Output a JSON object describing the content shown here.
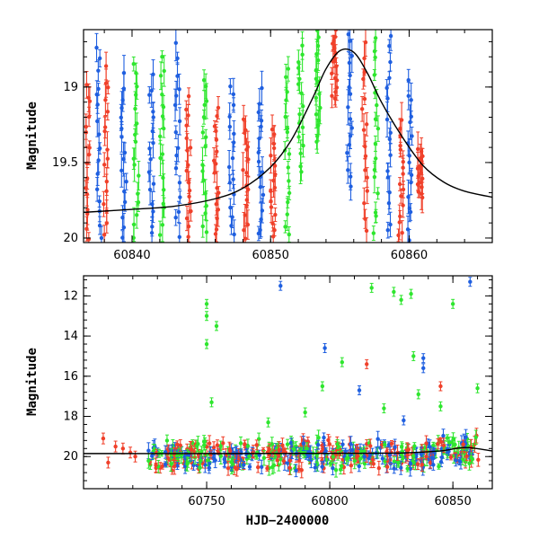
{
  "colors": {
    "green": "#2ee62e",
    "blue": "#1f5fe0",
    "red": "#f0402a"
  },
  "chart_data": [
    {
      "id": "top",
      "type": "scatter",
      "xlabel": "",
      "ylabel": "Magnitude",
      "xlim": [
        60836.5,
        60866.0
      ],
      "ylim": [
        20.03,
        18.62
      ],
      "y_inverted": true,
      "xticks": [
        60840,
        60850,
        60860
      ],
      "yticks": [
        19.0,
        19.5,
        20.0
      ],
      "ytick_labels": [
        "19",
        "19.5",
        "20"
      ],
      "grid": false,
      "legend": "none",
      "model_curve": {
        "x": [
          60836.5,
          60840,
          60843,
          60846,
          60848,
          60850,
          60851.5,
          60853,
          60854,
          60855,
          60856,
          60857,
          60858,
          60859.5,
          60861,
          60862.5,
          60864,
          60866
        ],
        "y": [
          19.83,
          19.81,
          19.79,
          19.74,
          19.67,
          19.53,
          19.35,
          19.08,
          18.88,
          18.76,
          18.77,
          18.91,
          19.1,
          19.33,
          19.52,
          19.63,
          19.69,
          19.73
        ]
      },
      "columns": [
        {
          "x": 60836.8,
          "y_top": 18.95,
          "y_bottom": 20.03,
          "series": "red"
        },
        {
          "x": 60837.6,
          "y_top": 18.7,
          "y_bottom": 20.03,
          "series": "blue"
        },
        {
          "x": 60838.1,
          "y_top": 18.85,
          "y_bottom": 20.03,
          "series": "red"
        },
        {
          "x": 60839.4,
          "y_top": 18.9,
          "y_bottom": 20.03,
          "series": "blue"
        },
        {
          "x": 60840.3,
          "y_top": 18.8,
          "y_bottom": 20.03,
          "series": "green"
        },
        {
          "x": 60841.4,
          "y_top": 18.9,
          "y_bottom": 20.03,
          "series": "blue"
        },
        {
          "x": 60842.2,
          "y_top": 18.75,
          "y_bottom": 20.03,
          "series": "green"
        },
        {
          "x": 60843.3,
          "y_top": 18.7,
          "y_bottom": 20.03,
          "series": "blue"
        },
        {
          "x": 60844.1,
          "y_top": 19.05,
          "y_bottom": 20.03,
          "series": "red"
        },
        {
          "x": 60845.2,
          "y_top": 18.9,
          "y_bottom": 20.03,
          "series": "green"
        },
        {
          "x": 60846.1,
          "y_top": 19.1,
          "y_bottom": 20.03,
          "series": "red"
        },
        {
          "x": 60847.2,
          "y_top": 18.95,
          "y_bottom": 20.03,
          "series": "blue"
        },
        {
          "x": 60848.2,
          "y_top": 19.2,
          "y_bottom": 20.03,
          "series": "red"
        },
        {
          "x": 60849.3,
          "y_top": 19.0,
          "y_bottom": 20.03,
          "series": "blue"
        },
        {
          "x": 60850.2,
          "y_top": 19.25,
          "y_bottom": 20.03,
          "series": "red"
        },
        {
          "x": 60851.2,
          "y_top": 18.85,
          "y_bottom": 20.03,
          "series": "green"
        },
        {
          "x": 60852.2,
          "y_top": 18.7,
          "y_bottom": 19.6,
          "series": "green"
        },
        {
          "x": 60853.4,
          "y_top": 18.62,
          "y_bottom": 19.4,
          "series": "green"
        },
        {
          "x": 60854.6,
          "y_top": 18.62,
          "y_bottom": 19.1,
          "series": "red"
        },
        {
          "x": 60855.7,
          "y_top": 18.62,
          "y_bottom": 19.7,
          "series": "blue"
        },
        {
          "x": 60856.8,
          "y_top": 18.7,
          "y_bottom": 20.0,
          "series": "red"
        },
        {
          "x": 60857.6,
          "y_top": 18.62,
          "y_bottom": 20.03,
          "series": "green"
        },
        {
          "x": 60858.5,
          "y_top": 18.62,
          "y_bottom": 20.03,
          "series": "blue"
        },
        {
          "x": 60859.4,
          "y_top": 19.2,
          "y_bottom": 20.03,
          "series": "red"
        },
        {
          "x": 60860.1,
          "y_top": 18.95,
          "y_bottom": 20.03,
          "series": "blue"
        },
        {
          "x": 60860.8,
          "y_top": 19.4,
          "y_bottom": 19.75,
          "series": "red"
        }
      ]
    },
    {
      "id": "bottom",
      "type": "scatter",
      "xlabel": "HJD−2400000",
      "ylabel": "Magnitude",
      "xlim": [
        60700,
        60866
      ],
      "ylim": [
        21.6,
        11.0
      ],
      "y_inverted": true,
      "xticks": [
        60750,
        60800,
        60850
      ],
      "yticks": [
        12,
        14,
        16,
        18,
        20
      ],
      "grid": false,
      "legend": "none",
      "model_curve": {
        "x": [
          60700,
          60760,
          60800,
          60830,
          60845,
          60855,
          60866
        ],
        "y": [
          19.85,
          19.85,
          19.84,
          19.82,
          19.72,
          19.55,
          19.72
        ]
      },
      "baseline": {
        "x_start": 60726,
        "x_end": 60861,
        "y_center": 19.9,
        "spread": 0.9
      },
      "early_points": [
        {
          "x": 60708,
          "y": 19.1,
          "series": "red"
        },
        {
          "x": 60710,
          "y": 20.3,
          "series": "red"
        },
        {
          "x": 60713,
          "y": 19.5,
          "series": "red"
        },
        {
          "x": 60716,
          "y": 19.6,
          "series": "red"
        },
        {
          "x": 60719,
          "y": 19.8,
          "series": "red"
        },
        {
          "x": 60721,
          "y": 20.0,
          "series": "red"
        }
      ],
      "outliers": [
        {
          "x": 60750,
          "y": 12.4,
          "series": "green"
        },
        {
          "x": 60750,
          "y": 13.0,
          "series": "green"
        },
        {
          "x": 60750,
          "y": 14.4,
          "series": "green"
        },
        {
          "x": 60754,
          "y": 13.5,
          "series": "green"
        },
        {
          "x": 60780,
          "y": 11.5,
          "series": "blue"
        },
        {
          "x": 60798,
          "y": 14.6,
          "series": "blue"
        },
        {
          "x": 60797,
          "y": 16.5,
          "series": "green"
        },
        {
          "x": 60805,
          "y": 15.3,
          "series": "green"
        },
        {
          "x": 60812,
          "y": 16.7,
          "series": "blue"
        },
        {
          "x": 60815,
          "y": 15.4,
          "series": "red"
        },
        {
          "x": 60817,
          "y": 11.6,
          "series": "green"
        },
        {
          "x": 60826,
          "y": 11.8,
          "series": "green"
        },
        {
          "x": 60829,
          "y": 12.2,
          "series": "green"
        },
        {
          "x": 60833,
          "y": 11.9,
          "series": "green"
        },
        {
          "x": 60834,
          "y": 15.0,
          "series": "green"
        },
        {
          "x": 60838,
          "y": 15.1,
          "series": "blue"
        },
        {
          "x": 60838,
          "y": 15.6,
          "series": "blue"
        },
        {
          "x": 60836,
          "y": 16.9,
          "series": "green"
        },
        {
          "x": 60845,
          "y": 16.5,
          "series": "red"
        },
        {
          "x": 60850,
          "y": 12.4,
          "series": "green"
        },
        {
          "x": 60857,
          "y": 11.3,
          "series": "blue"
        },
        {
          "x": 60860,
          "y": 16.6,
          "series": "green"
        },
        {
          "x": 60752,
          "y": 17.3,
          "series": "green"
        },
        {
          "x": 60790,
          "y": 17.8,
          "series": "green"
        },
        {
          "x": 60822,
          "y": 17.6,
          "series": "green"
        },
        {
          "x": 60845,
          "y": 17.5,
          "series": "green"
        },
        {
          "x": 60775,
          "y": 18.3,
          "series": "green"
        },
        {
          "x": 60830,
          "y": 18.2,
          "series": "blue"
        }
      ]
    }
  ]
}
